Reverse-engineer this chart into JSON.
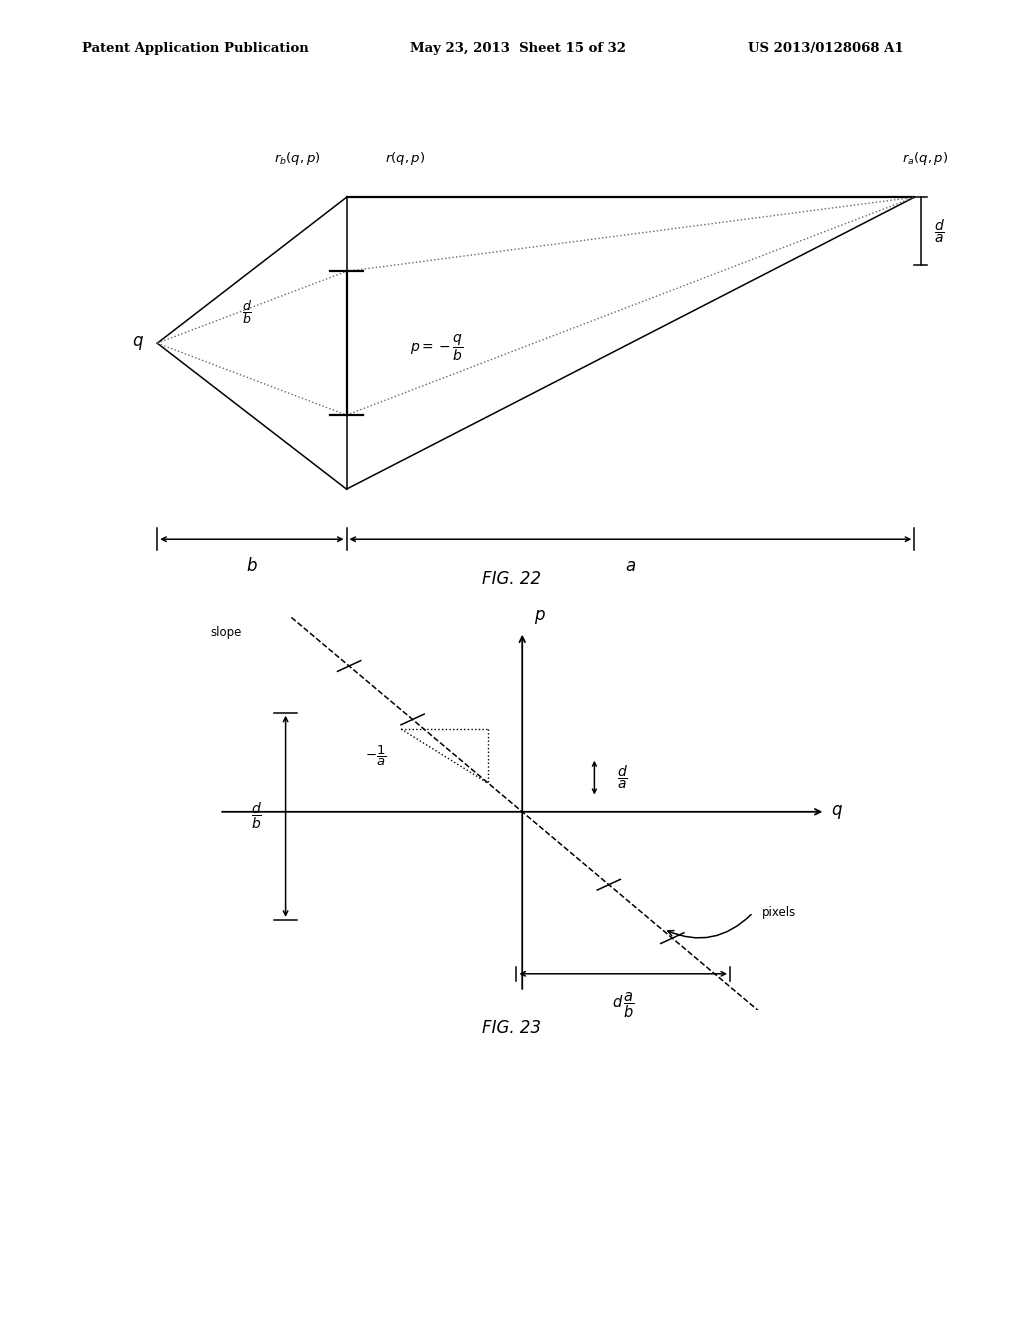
{
  "bg_color": "#ffffff",
  "header_text": "Patent Application Publication  May 23, 2013 Sheet 15 of 32  US 2013/0128068 A1",
  "fig22_caption": "FIG. 22",
  "fig23_caption": "FIG. 23",
  "lw": 1.1
}
